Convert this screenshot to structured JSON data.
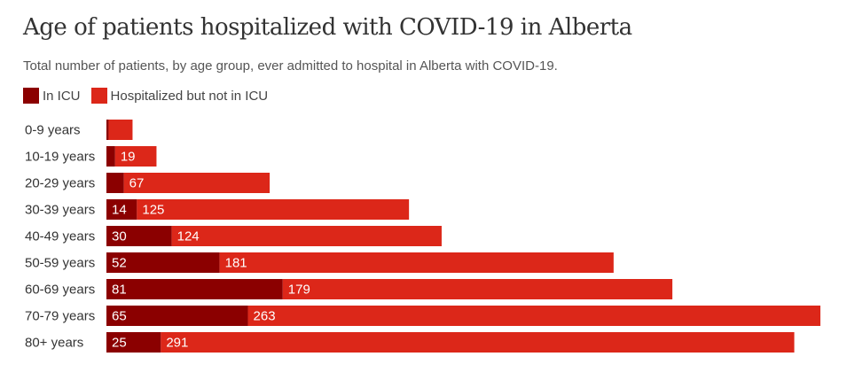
{
  "title": "Age of patients hospitalized with COVID-19 in Alberta",
  "subtitle": "Total number of patients, by age group, ever admitted to hospital in Alberta with COVID-19.",
  "colors": {
    "icu": "#8b0000",
    "non_icu": "#dc2719"
  },
  "legend": [
    {
      "label": "In ICU",
      "color": "#8b0000"
    },
    {
      "label": "Hospitalized but not in ICU",
      "color": "#dc2719"
    }
  ],
  "chart_data": {
    "type": "bar",
    "orientation": "horizontal",
    "stacked": true,
    "title": "Age of patients hospitalized with COVID-19 in Alberta",
    "subtitle": "Total number of patients, by age group, ever admitted to hospital in Alberta with COVID-19.",
    "categories": [
      "0-9 years",
      "10-19 years",
      "20-29 years",
      "30-39 years",
      "40-49 years",
      "50-59 years",
      "60-69 years",
      "70-79 years",
      "80+ years"
    ],
    "series": [
      {
        "name": "In ICU",
        "values": [
          1,
          4,
          8,
          14,
          30,
          52,
          81,
          65,
          25
        ]
      },
      {
        "name": "Hospitalized but not in ICU",
        "values": [
          11,
          19,
          67,
          125,
          124,
          181,
          179,
          263,
          291
        ]
      }
    ],
    "data_labels": [
      [
        "",
        ""
      ],
      [
        "",
        "19"
      ],
      [
        "",
        "67"
      ],
      [
        "14",
        "125"
      ],
      [
        "30",
        "124"
      ],
      [
        "52",
        "181"
      ],
      [
        "81",
        "179"
      ],
      [
        "65",
        "263"
      ],
      [
        "25",
        "291"
      ]
    ],
    "xlim": [
      0,
      328
    ],
    "grid": false,
    "legend_position": "top-left"
  }
}
